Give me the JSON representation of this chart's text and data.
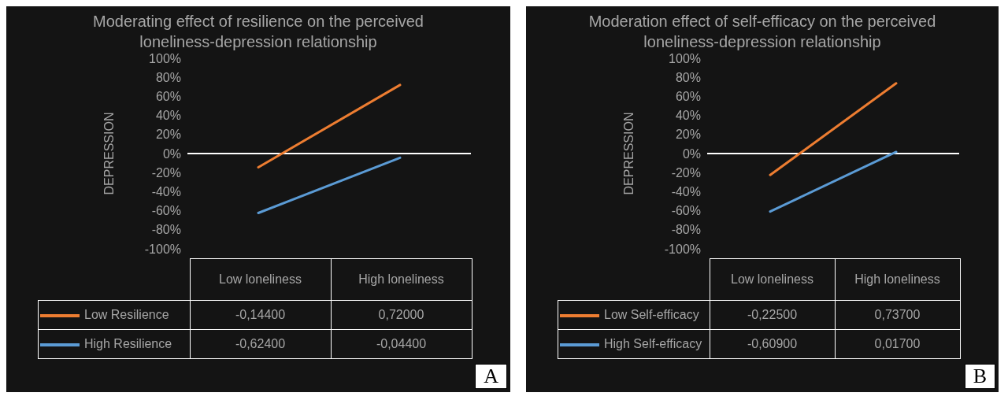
{
  "chart_data": [
    {
      "type": "line",
      "title": "Moderating effect of resilience on the perceived loneliness-depression relationship",
      "ylabel": "DEPRESSION",
      "categories": [
        "Low loneliness",
        "High loneliness"
      ],
      "series": [
        {
          "name": "Low Resilience",
          "color": "#ed7d31",
          "values": [
            -0.144,
            0.72
          ],
          "value_labels": [
            "-0,14400",
            "0,72000"
          ]
        },
        {
          "name": "High Resilience",
          "color": "#5b9bd5",
          "values": [
            -0.624,
            -0.044
          ],
          "value_labels": [
            "-0,62400",
            "-0,04400"
          ]
        }
      ],
      "ylim": [
        -1,
        1
      ],
      "yticks": [
        {
          "value": -1,
          "label": "-100%"
        },
        {
          "value": -0.8,
          "label": "-80%"
        },
        {
          "value": -0.6,
          "label": "-60%"
        },
        {
          "value": -0.4,
          "label": "-40%"
        },
        {
          "value": -0.2,
          "label": "-20%"
        },
        {
          "value": 0,
          "label": "0%"
        },
        {
          "value": 0.2,
          "label": "20%"
        },
        {
          "value": 0.4,
          "label": "40%"
        },
        {
          "value": 0.6,
          "label": "60%"
        },
        {
          "value": 0.8,
          "label": "80%"
        },
        {
          "value": 1,
          "label": "100%"
        }
      ],
      "ref_lines": [
        {
          "axis": "y",
          "value": 0,
          "color": "#ffffff"
        }
      ],
      "legend": "bottom",
      "annotations": [
        "A"
      ]
    },
    {
      "type": "line",
      "title": "Moderation effect of self-efficacy on the perceived loneliness-depression relationship",
      "ylabel": "DEPRESSION",
      "categories": [
        "Low loneliness",
        "High loneliness"
      ],
      "series": [
        {
          "name": "Low Self-efficacy",
          "color": "#ed7d31",
          "values": [
            -0.225,
            0.737
          ],
          "value_labels": [
            "-0,22500",
            "0,73700"
          ]
        },
        {
          "name": "High Self-efficacy",
          "color": "#5b9bd5",
          "values": [
            -0.609,
            0.017
          ],
          "value_labels": [
            "-0,60900",
            "0,01700"
          ]
        }
      ],
      "ylim": [
        -1,
        1
      ],
      "yticks": [
        {
          "value": -1,
          "label": "-100%"
        },
        {
          "value": -0.8,
          "label": "-80%"
        },
        {
          "value": -0.6,
          "label": "-60%"
        },
        {
          "value": -0.4,
          "label": "-40%"
        },
        {
          "value": -0.2,
          "label": "-20%"
        },
        {
          "value": 0,
          "label": "0%"
        },
        {
          "value": 0.2,
          "label": "20%"
        },
        {
          "value": 0.4,
          "label": "40%"
        },
        {
          "value": 0.6,
          "label": "60%"
        },
        {
          "value": 0.8,
          "label": "80%"
        },
        {
          "value": 1,
          "label": "100%"
        }
      ],
      "ref_lines": [
        {
          "axis": "y",
          "value": 0,
          "color": "#ffffff"
        }
      ],
      "legend": "bottom",
      "annotations": [
        "B"
      ]
    }
  ]
}
